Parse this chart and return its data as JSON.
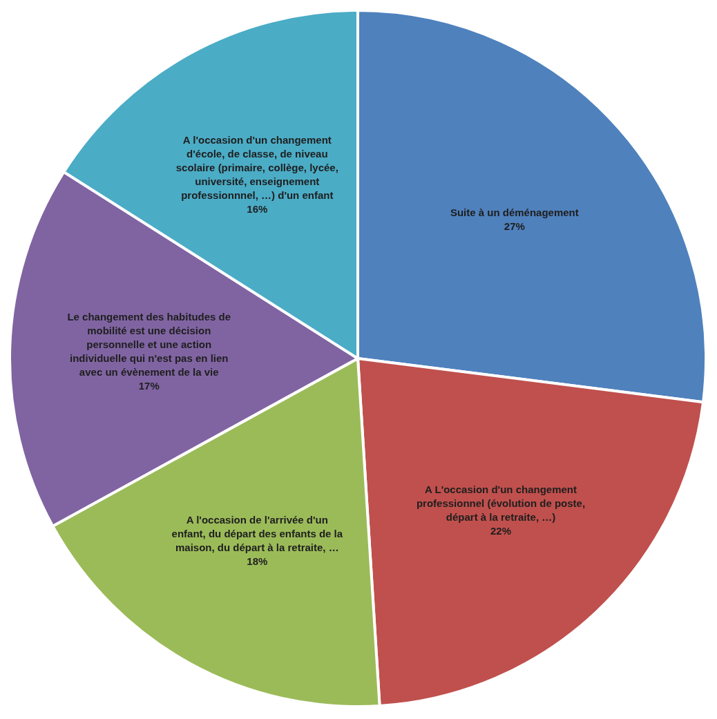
{
  "chart_data": {
    "type": "pie",
    "categories": [
      "Suite à un déménagement",
      "A L'occasion d'un changement professionnel (évolution de poste, départ à la retraite, …)",
      "A l'occasion de l'arrivée d'un enfant, du départ des enfants de la maison, du départ à la retraite, …",
      "Le changement des habitudes de mobilité est une décision personnelle et une action individuelle qui n'est pas en lien avec un évènement de la vie",
      "A l'occasion d'un changement d'école, de classe, de niveau scolaire (primaire, collège, lycée, université, enseignement professionnnel, …) d'un enfant"
    ],
    "values": [
      27,
      22,
      18,
      17,
      16
    ],
    "value_labels": [
      "27%",
      "22%",
      "18%",
      "17%",
      "16%"
    ],
    "colors": [
      "#4f81bd",
      "#c0504d",
      "#9bbb59",
      "#8064a2",
      "#4bacc6"
    ],
    "legend": false
  }
}
